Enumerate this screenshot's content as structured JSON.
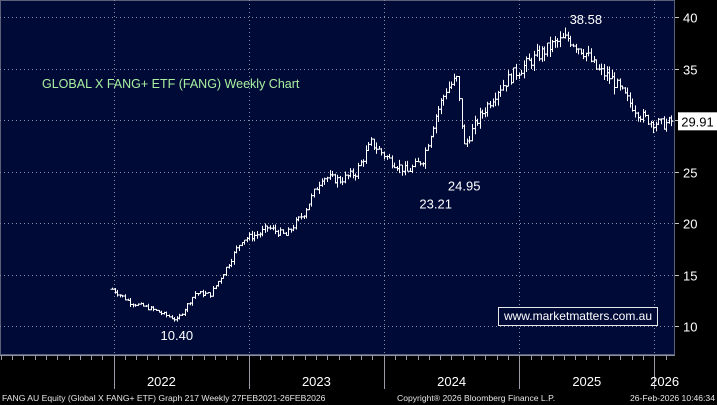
{
  "chart_data": {
    "type": "line",
    "style": "weekly bar (OHLC)",
    "title": "GLOBAL X FANG+ ETF (FANG) Weekly Chart",
    "xlabel": "",
    "ylabel": "",
    "ylim": [
      7.2,
      41.7
    ],
    "yticks": [
      10,
      15,
      20,
      25,
      30,
      35,
      40
    ],
    "xticks": [
      "2022",
      "2023",
      "2024",
      "2025",
      "2026"
    ],
    "x_range": [
      "2021-02-27",
      "2026-02-26"
    ],
    "grid": true,
    "colors": {
      "background": "#000a36",
      "bars": "#ffffff",
      "grid": "#8a8fa8",
      "title": "#a8f0a0",
      "price_box_bg": "#ffffff",
      "price_box_text": "#000000"
    },
    "last_price": 29.91,
    "annotations": [
      {
        "label": "10.40",
        "date": "2022-06-20",
        "value": 10.4
      },
      {
        "label": "23.21",
        "date": "2024-05-20",
        "value": 23.21
      },
      {
        "label": "24.95",
        "date": "2024-08-05",
        "value": 24.95
      },
      {
        "label": "38.58",
        "date": "2025-06-30",
        "value": 38.58
      }
    ],
    "series": [
      {
        "x": [
          "2021-12-27",
          "2022-02-14",
          "2022-04-11",
          "2022-06-20",
          "2022-08-08",
          "2022-09-19",
          "2022-10-24",
          "2022-12-12",
          "2023-01-30",
          "2023-02-20",
          "2023-04-10",
          "2023-05-29",
          "2023-07-17",
          "2023-09-04",
          "2023-10-16",
          "2023-11-27",
          "2024-01-15",
          "2024-03-04",
          "2024-04-15",
          "2024-05-20",
          "2024-06-17",
          "2024-07-15",
          "2024-08-05",
          "2024-09-09",
          "2024-11-04",
          "2024-12-16",
          "2025-02-17",
          "2025-04-07",
          "2025-05-12",
          "2025-06-30",
          "2025-07-28",
          "2025-09-08",
          "2025-10-20",
          "2025-11-24",
          "2025-12-22",
          "2026-01-26",
          "2026-02-16"
        ],
        "values": [
          13.6,
          12.3,
          11.7,
          10.6,
          13.2,
          13.1,
          15.2,
          18.4,
          19.0,
          19.6,
          18.8,
          21.0,
          24.5,
          24.2,
          24.9,
          27.8,
          26.2,
          25.0,
          26.2,
          30.5,
          33.0,
          34.0,
          27.5,
          30.0,
          33.0,
          34.5,
          36.2,
          37.5,
          38.0,
          36.5,
          35.0,
          34.0,
          32.0,
          30.5,
          29.9,
          29.6,
          29.91
        ]
      }
    ]
  },
  "labels": {
    "title": "GLOBAL X FANG+ ETF (FANG) Weekly Chart",
    "watermark": "www.marketmatters.com.au",
    "last_price": "29.91",
    "footer_left": "FANG AU Equity (Global X FANG+ ETF) Graph 217 Weekly 27FEB2021-26FEB2026",
    "footer_center": "Copyright® 2026 Bloomberg Finance L.P.",
    "footer_right": "26-Feb-2026 10:46:34"
  }
}
